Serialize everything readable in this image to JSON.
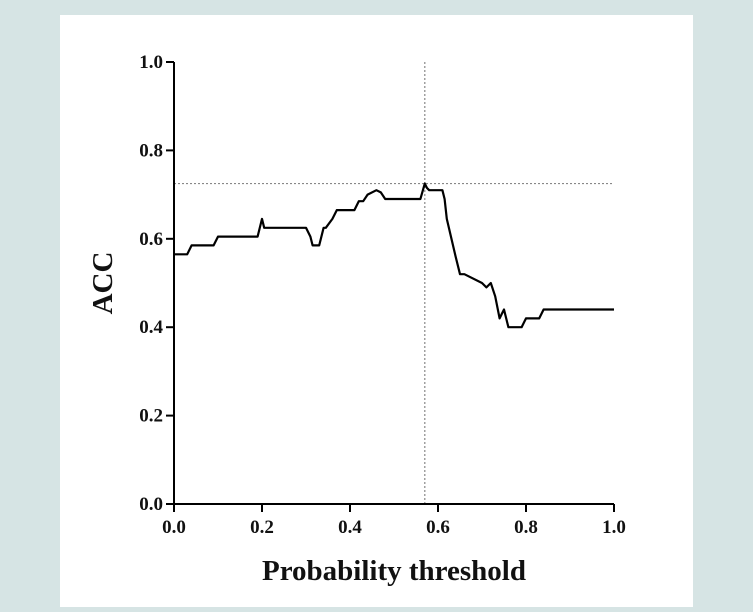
{
  "chart_data": {
    "type": "line",
    "title": "",
    "xlabel": "Probability threshold",
    "ylabel": "ACC",
    "xlim": [
      0.0,
      1.0
    ],
    "ylim": [
      0.0,
      1.0
    ],
    "x_ticks": [
      "0.0",
      "0.2",
      "0.4",
      "0.6",
      "0.8",
      "1.0"
    ],
    "y_ticks": [
      "0.0",
      "0.2",
      "0.4",
      "0.6",
      "0.8",
      "1.0"
    ],
    "grid": false,
    "legend": "none",
    "line_color": "#000000",
    "reference_lines": {
      "vertical_x": 0.57,
      "horizontal_y": 0.725,
      "style": "dotted",
      "color": "#888888"
    },
    "series": [
      {
        "x": [
          0.0,
          0.03,
          0.04,
          0.09,
          0.1,
          0.19,
          0.2,
          0.205,
          0.21,
          0.3,
          0.31,
          0.315,
          0.33,
          0.34,
          0.345,
          0.36,
          0.37,
          0.38,
          0.39,
          0.41,
          0.42,
          0.43,
          0.44,
          0.46,
          0.47,
          0.48,
          0.49,
          0.5,
          0.51,
          0.56,
          0.57,
          0.575,
          0.58,
          0.6,
          0.61,
          0.615,
          0.62,
          0.64,
          0.65,
          0.66,
          0.7,
          0.71,
          0.72,
          0.73,
          0.74,
          0.745,
          0.75,
          0.755,
          0.76,
          0.77,
          0.79,
          0.8,
          0.83,
          0.84,
          1.0
        ],
        "y": [
          0.565,
          0.565,
          0.585,
          0.585,
          0.605,
          0.605,
          0.645,
          0.625,
          0.625,
          0.625,
          0.605,
          0.585,
          0.585,
          0.625,
          0.625,
          0.645,
          0.665,
          0.665,
          0.665,
          0.665,
          0.685,
          0.685,
          0.7,
          0.71,
          0.705,
          0.69,
          0.69,
          0.69,
          0.69,
          0.69,
          0.725,
          0.715,
          0.71,
          0.71,
          0.71,
          0.69,
          0.645,
          0.56,
          0.52,
          0.52,
          0.5,
          0.49,
          0.5,
          0.47,
          0.42,
          0.43,
          0.44,
          0.42,
          0.4,
          0.4,
          0.4,
          0.42,
          0.42,
          0.44,
          0.44
        ]
      }
    ]
  }
}
